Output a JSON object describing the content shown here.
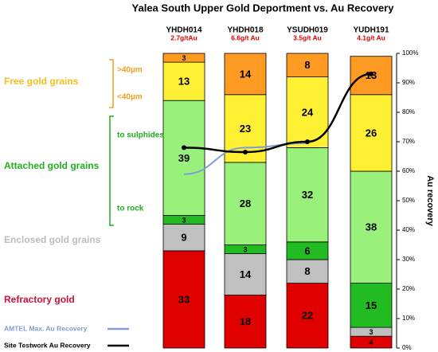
{
  "chart_data": {
    "type": "bar",
    "stacked": true,
    "title": "Yalea South Upper Gold Deportment vs. Au Recovery",
    "categories": [
      "YHDH014",
      "YHDH018",
      "YSUDH019",
      "YUDH191"
    ],
    "category_subtitles": [
      "2.7g/tAu",
      "6.6g/t Au",
      "3.5g/t Au",
      "4.1g/t Au"
    ],
    "series": [
      {
        "name": "Refractory gold",
        "color": "#e00000",
        "label_color": "#d0103a",
        "values": [
          33,
          18,
          22,
          4
        ]
      },
      {
        "name": "Enclosed gold grains",
        "color": "#c0c0c0",
        "label_color": "#bdbdbd",
        "values": [
          9,
          14,
          8,
          3
        ]
      },
      {
        "name": "to rock",
        "color": "#22bb22",
        "label_color": "#22aa22",
        "values": [
          3,
          3,
          6,
          15
        ]
      },
      {
        "name": "to sulphides",
        "color": "#99f07a",
        "label_color": "#22aa22",
        "values": [
          39,
          28,
          32,
          38
        ]
      },
      {
        "name": "<40µm",
        "color": "#fff033",
        "label_color": "#f0a020",
        "values": [
          13,
          23,
          24,
          26
        ]
      },
      {
        "name": ">40µm",
        "color": "#ff9a22",
        "label_color": "#f0a020",
        "values": [
          3,
          14,
          8,
          13
        ]
      }
    ],
    "groups": [
      {
        "label": "Attached gold grains",
        "color": "#22b022"
      },
      {
        "label": "Free gold grains",
        "color": "#f4c020"
      }
    ],
    "lines": [
      {
        "name": "AMTEL Max. Au Recovery",
        "color": "#7f9fd0",
        "marker": false,
        "values": [
          59,
          68,
          69.5,
          null
        ]
      },
      {
        "name": "Site Testwork Au Recovery",
        "color": "#000000",
        "marker": true,
        "values": [
          68,
          66.5,
          70,
          93
        ]
      }
    ],
    "ylabel": "Au recovery",
    "yaxis_side": "right",
    "ylim": [
      0,
      100
    ],
    "yticks": [
      {
        "value": 0,
        "label": "0%"
      },
      {
        "value": 10,
        "label": "10%"
      },
      {
        "value": 20,
        "label": "20%"
      },
      {
        "value": 30,
        "label": "30%"
      },
      {
        "value": 40,
        "label": "40%"
      },
      {
        "value": 50,
        "label": "50%"
      },
      {
        "value": 60,
        "label": "60%"
      },
      {
        "value": 70,
        "label": "70%"
      },
      {
        "value": 80,
        "label": "80%"
      },
      {
        "value": 90,
        "label": "90%"
      },
      {
        "value": 100,
        "label": "100%"
      }
    ]
  }
}
